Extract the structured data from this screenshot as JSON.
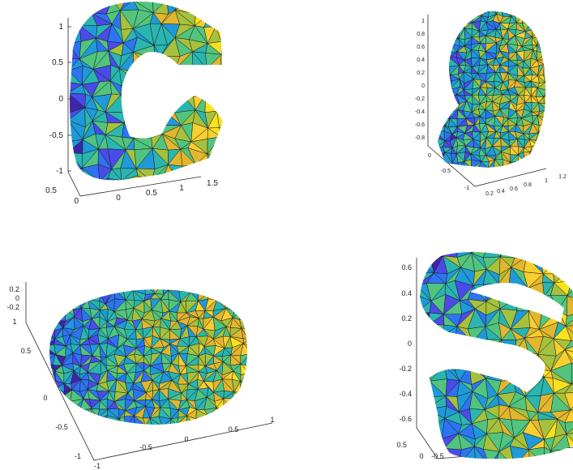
{
  "palette": [
    "#3e26a8",
    "#4a4be8",
    "#2d74f2",
    "#1f99d8",
    "#2ab5b0",
    "#52c47e",
    "#a6c13c",
    "#e2b62f",
    "#f8cf2f",
    "#f9e11e"
  ],
  "panels": [
    {
      "id": "c",
      "shape": "letter-c",
      "zticks": [
        "1",
        "0.5",
        "0",
        "-0.5",
        "-1"
      ],
      "yticks": [
        "0.5",
        "0"
      ],
      "xticks": [
        "0",
        "0.5",
        "1",
        "1.5"
      ]
    },
    {
      "id": "head",
      "shape": "head",
      "zticks": [
        "1",
        "0.8",
        "0.6",
        "0.4",
        "0.2",
        "0",
        "-0.2",
        "-0.4",
        "-0.6",
        "-0.8"
      ],
      "yticks": [
        "0",
        "-0.5",
        "-1"
      ],
      "xticks": [
        "0.2",
        "0.4",
        "0.6",
        "0.8",
        "1",
        "1.2"
      ]
    },
    {
      "id": "torus",
      "shape": "torus",
      "zticks": [
        "0.2",
        "0",
        "-0.2"
      ],
      "yticks": [
        "1",
        "0.5",
        "0",
        "-0.5",
        "-1"
      ],
      "xticks": [
        "-1",
        "-0.5",
        "0",
        "0.5",
        "1"
      ]
    },
    {
      "id": "s",
      "shape": "letter-s",
      "zticks": [
        "0.6",
        "0.4",
        "0.2",
        "0",
        "-0.2",
        "-0.4",
        "-0.6"
      ],
      "yticks": [
        "0.5",
        "0"
      ],
      "xticks": [
        "-0.5",
        "0",
        "0."
      ]
    }
  ]
}
